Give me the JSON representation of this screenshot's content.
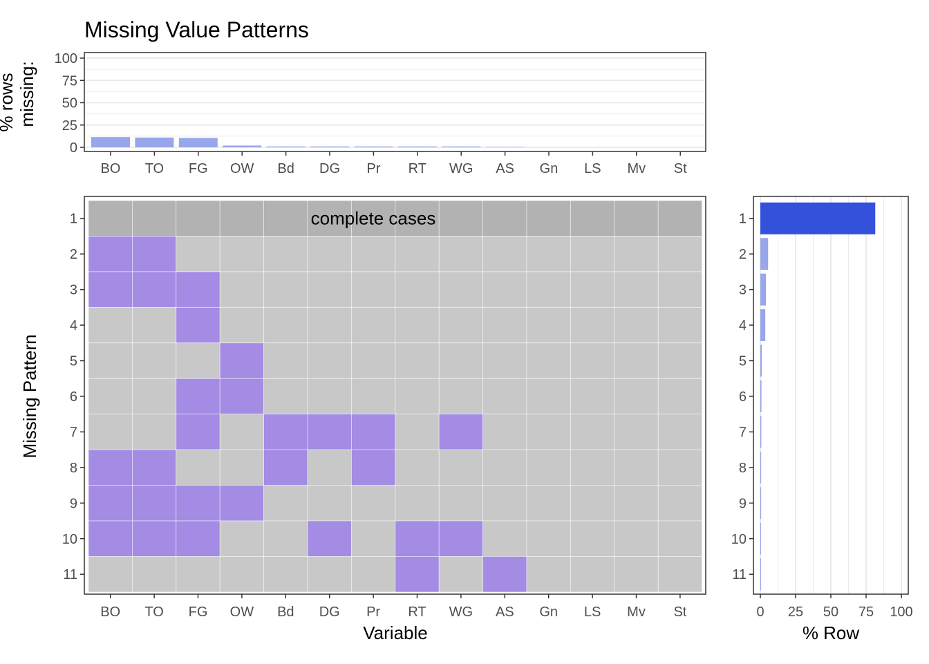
{
  "chart_data": {
    "type": "heatmap",
    "title": "Missing Value Patterns",
    "variables": [
      "BO",
      "TO",
      "FG",
      "OW",
      "Bd",
      "DG",
      "Pr",
      "RT",
      "WG",
      "AS",
      "Gn",
      "LS",
      "Mv",
      "St"
    ],
    "top_bar": {
      "type": "bar",
      "ylabel": "% rows missing:",
      "ylim": [
        0,
        100
      ],
      "yticks": [
        0,
        25,
        50,
        75,
        100
      ],
      "values": [
        11.5,
        11.0,
        10.5,
        2.0,
        1.0,
        1.0,
        1.0,
        1.0,
        1.0,
        0.5,
        0,
        0,
        0,
        0
      ],
      "grid": true
    },
    "heatmap": {
      "xlabel": "Variable",
      "ylabel": "Missing Pattern",
      "patterns": [
        "1",
        "2",
        "3",
        "4",
        "5",
        "6",
        "7",
        "8",
        "9",
        "10",
        "11"
      ],
      "complete_cases_label": "complete cases",
      "missing": [
        [],
        [
          "BO",
          "TO"
        ],
        [
          "BO",
          "TO",
          "FG"
        ],
        [
          "FG"
        ],
        [
          "OW"
        ],
        [
          "FG",
          "OW"
        ],
        [
          "FG",
          "Bd",
          "DG",
          "Pr",
          "WG"
        ],
        [
          "BO",
          "TO",
          "Bd",
          "Pr"
        ],
        [
          "BO",
          "TO",
          "FG",
          "OW"
        ],
        [
          "BO",
          "TO",
          "FG",
          "DG",
          "RT",
          "WG"
        ],
        [
          "RT",
          "AS"
        ]
      ]
    },
    "side_bar": {
      "type": "bar",
      "xlabel": "% Row",
      "xlim": [
        0,
        100
      ],
      "xticks": [
        0,
        25,
        50,
        75,
        100
      ],
      "values": [
        81.5,
        5.5,
        4.0,
        3.5,
        1.0,
        0.8,
        0.7,
        0.6,
        0.6,
        0.5,
        0.5
      ]
    },
    "colors": {
      "missing": "#a48be4",
      "present": "#c8c8c8",
      "complete": "#b2b2b2",
      "bar_light": "#98a6ea",
      "bar_highlight": "#3451db",
      "grid": "#ebebeb"
    }
  }
}
